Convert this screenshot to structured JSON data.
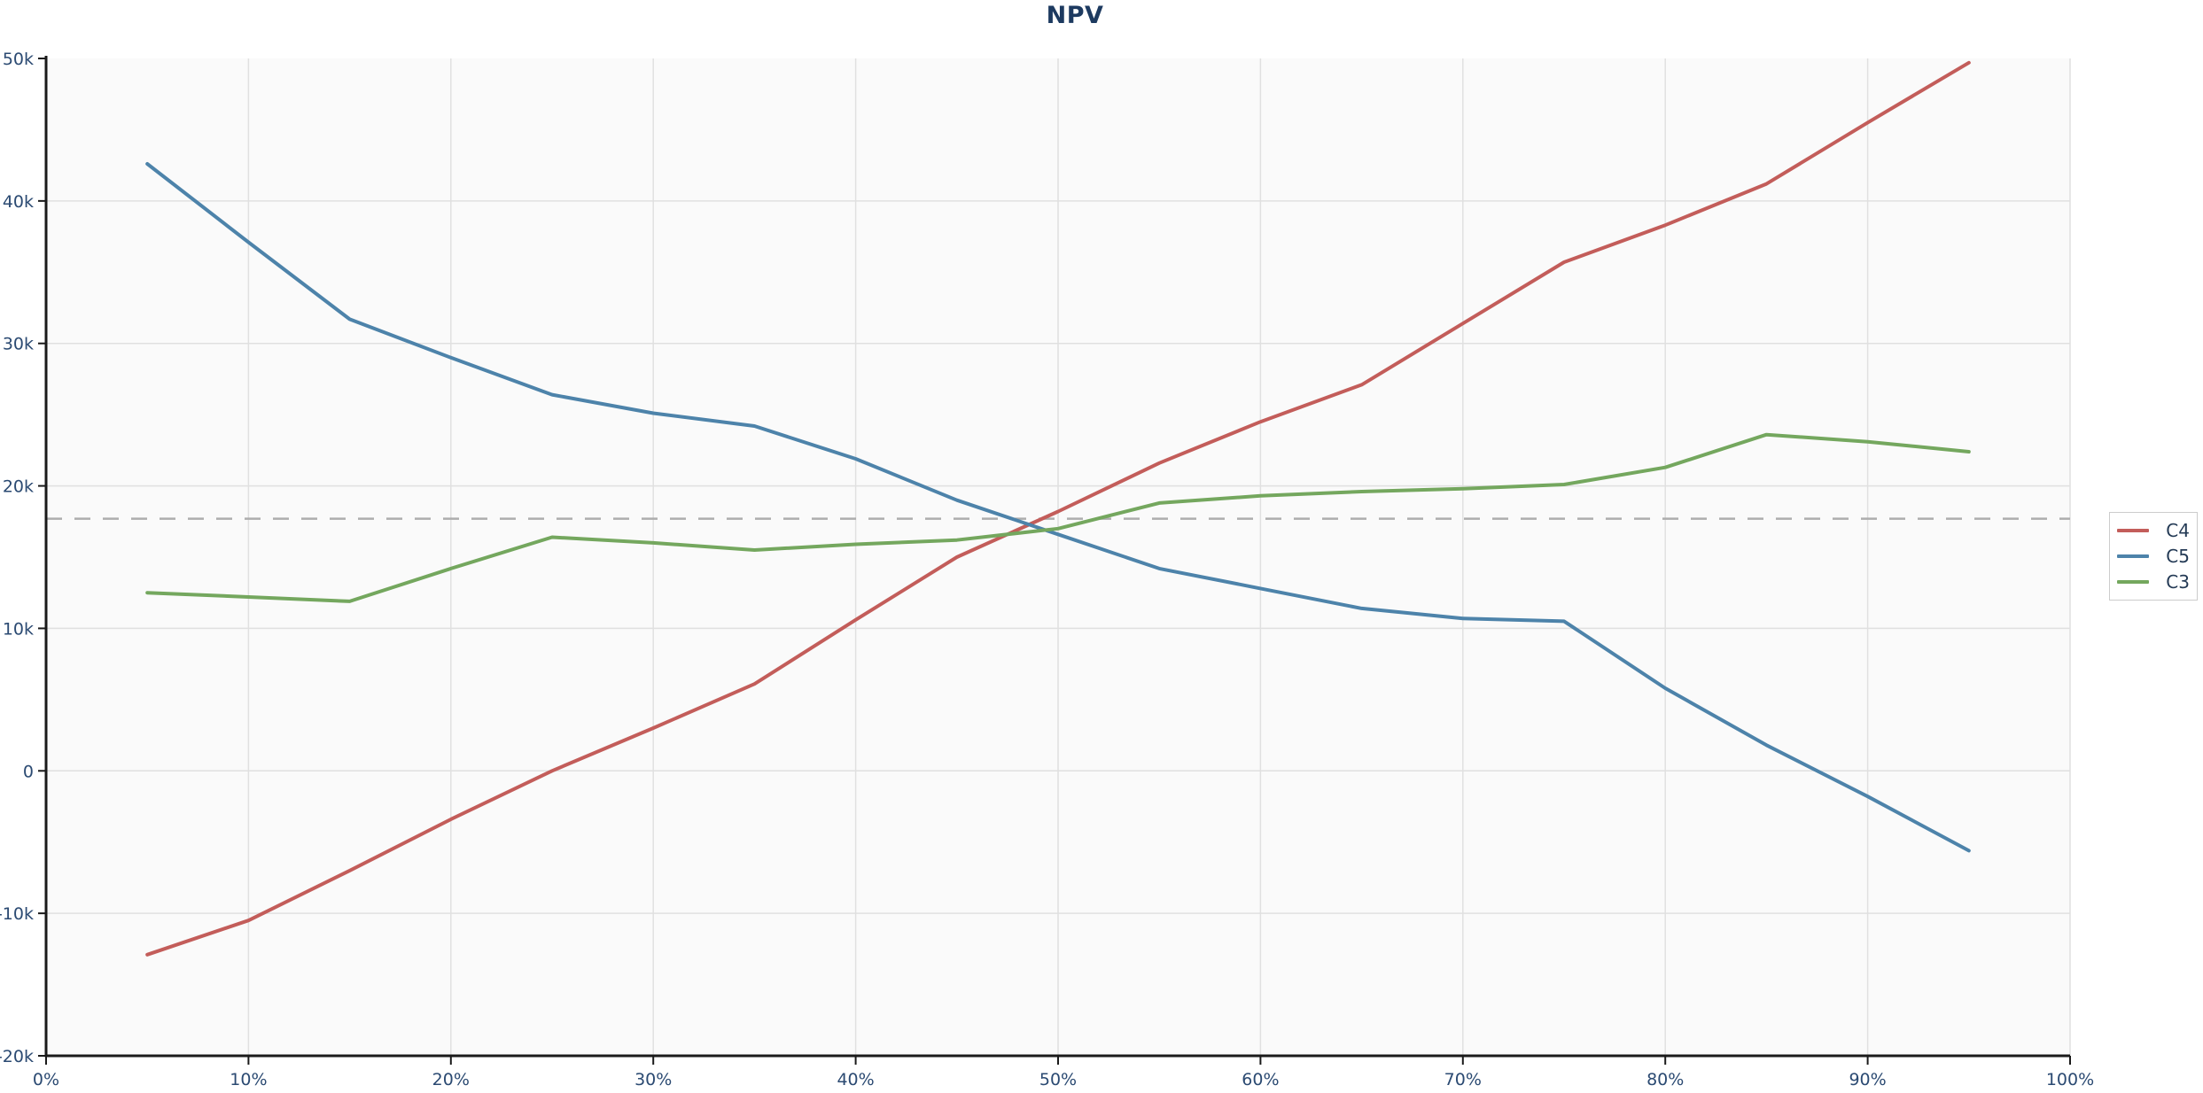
{
  "title": "NPV",
  "legend": {
    "items": [
      {
        "label": "C4",
        "color": "#c35d5a"
      },
      {
        "label": "C5",
        "color": "#4d83aa"
      },
      {
        "label": "C3",
        "color": "#74a75e"
      }
    ]
  },
  "chart_data": {
    "type": "line",
    "title": "NPV",
    "xlabel": "",
    "ylabel": "",
    "xlim": [
      0,
      100
    ],
    "ylim": [
      -20000,
      50000
    ],
    "grid": true,
    "legend_position": "right",
    "plot_bg": "#fafafa",
    "gridline_color": "#e0e0e0",
    "axis_color": "#1a1a1a",
    "tick_label_color": "#2b4a72",
    "x_ticks": [
      {
        "value": 0,
        "label": "0%"
      },
      {
        "value": 10,
        "label": "10%"
      },
      {
        "value": 20,
        "label": "20%"
      },
      {
        "value": 30,
        "label": "30%"
      },
      {
        "value": 40,
        "label": "40%"
      },
      {
        "value": 50,
        "label": "50%"
      },
      {
        "value": 60,
        "label": "60%"
      },
      {
        "value": 70,
        "label": "70%"
      },
      {
        "value": 80,
        "label": "80%"
      },
      {
        "value": 90,
        "label": "90%"
      },
      {
        "value": 100,
        "label": "100%"
      }
    ],
    "y_ticks": [
      {
        "value": 50000,
        "label": "50k"
      },
      {
        "value": 40000,
        "label": "40k"
      },
      {
        "value": 30000,
        "label": "30k"
      },
      {
        "value": 20000,
        "label": "20k"
      },
      {
        "value": 10000,
        "label": "10k"
      },
      {
        "value": 0,
        "label": "0"
      },
      {
        "value": -10000,
        "label": "-10k"
      },
      {
        "value": -20000,
        "label": "-20k"
      }
    ],
    "baseline": {
      "value": 17700,
      "style": "dashed",
      "color": "#adadad"
    },
    "x": [
      5,
      10,
      15,
      20,
      25,
      30,
      35,
      40,
      45,
      50,
      55,
      60,
      65,
      70,
      75,
      80,
      85,
      90,
      95
    ],
    "series": [
      {
        "name": "C4",
        "color": "#c35d5a",
        "values": [
          -12900,
          -10500,
          -7000,
          -3400,
          0,
          3000,
          6100,
          10600,
          15000,
          18200,
          21600,
          24500,
          27100,
          31400,
          35700,
          38300,
          41200,
          45500,
          49700
        ]
      },
      {
        "name": "C5",
        "color": "#4d83aa",
        "values": [
          42600,
          37100,
          31700,
          29000,
          26400,
          25100,
          24200,
          21900,
          19000,
          16600,
          14200,
          12800,
          11400,
          10700,
          10500,
          5800,
          1800,
          -1800,
          -5600
        ]
      },
      {
        "name": "C3",
        "color": "#74a75e",
        "values": [
          12500,
          12200,
          11900,
          14200,
          16400,
          16000,
          15500,
          15900,
          16200,
          17000,
          18800,
          19300,
          19600,
          19800,
          20100,
          21300,
          23600,
          23100,
          22400
        ]
      }
    ]
  }
}
